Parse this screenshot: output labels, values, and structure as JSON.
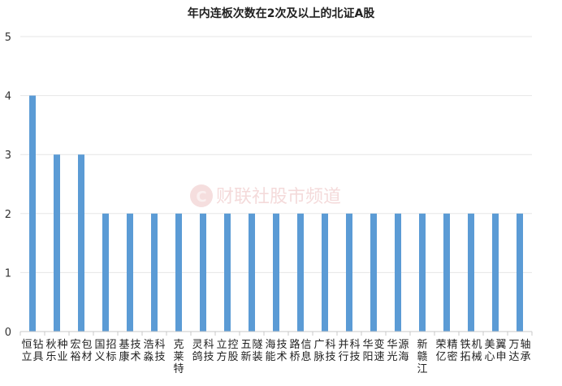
{
  "chart_data": {
    "type": "bar",
    "title": "年内连板次数在2次及以上的北证A股",
    "categories": [
      "恒立钻具",
      "秋乐种业",
      "宏裕包材",
      "国义招标",
      "基康技术",
      "浩淼科技",
      "克莱特",
      "灵鸽科技",
      "立方控股",
      "五新隧装",
      "海能技术",
      "路桥信息",
      "广脉科技",
      "并行科技",
      "华阳变速",
      "华光源海",
      "新赣江",
      "荣亿精密",
      "铁拓机械",
      "美心翼申",
      "万达轴承"
    ],
    "values": [
      4,
      3,
      3,
      2,
      2,
      2,
      2,
      2,
      2,
      2,
      2,
      2,
      2,
      2,
      2,
      2,
      2,
      2,
      2,
      2,
      2
    ],
    "yticks": [
      0,
      1,
      2,
      3,
      4,
      5
    ],
    "ylim": [
      0,
      5
    ],
    "xlabel": "",
    "ylabel": "",
    "grid": true,
    "bar_color": "#5b9bd5"
  },
  "watermark": {
    "text": "财联社股市频道",
    "logo_letter": "C",
    "color": "#c94a4a"
  }
}
